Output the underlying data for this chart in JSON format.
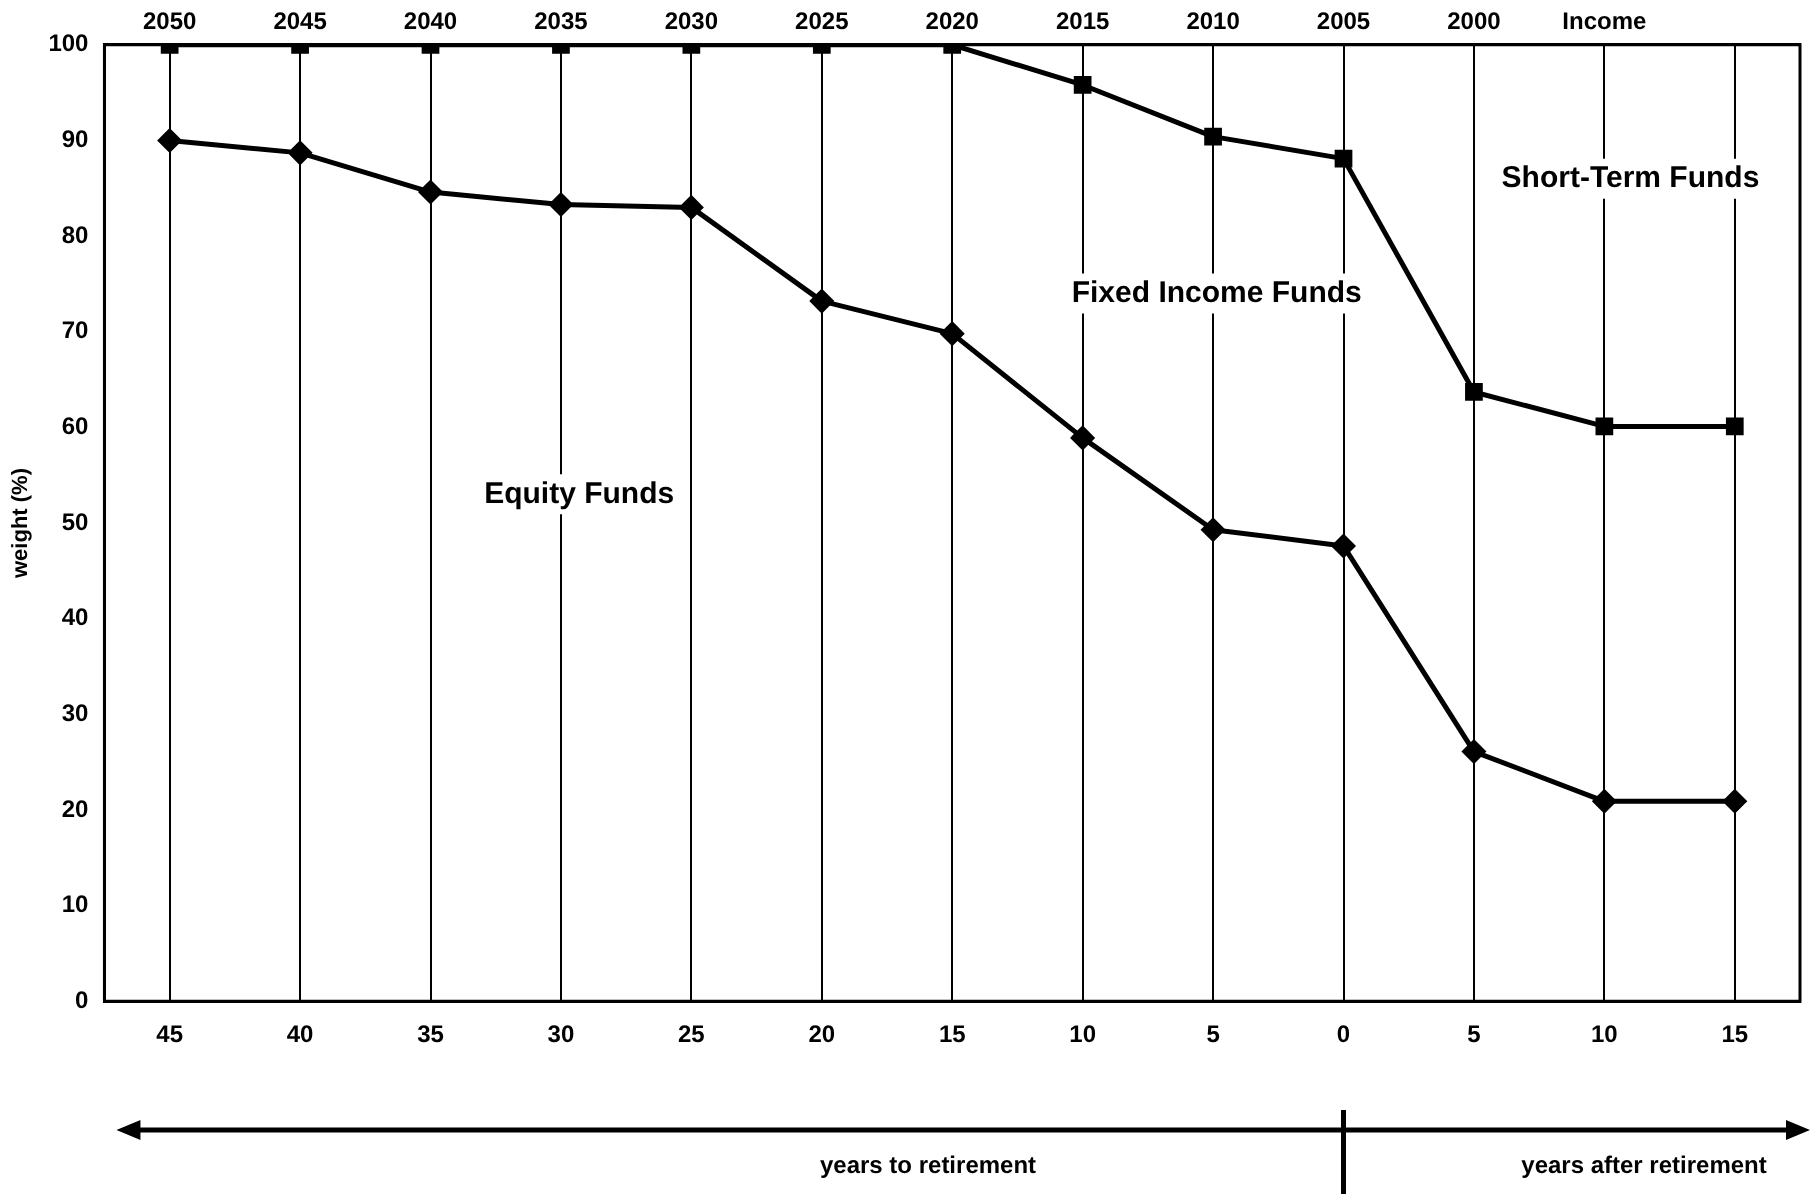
{
  "chart_data": {
    "type": "line",
    "ylabel": "weight (%)",
    "x": [
      -45,
      -40,
      -35,
      -30,
      -25,
      -20,
      -15,
      -10,
      -5,
      0,
      5,
      10,
      15
    ],
    "series": [
      {
        "color": "#000000",
        "marker": "square",
        "values": [
          100,
          100,
          100,
          100,
          100,
          100,
          100,
          95.8,
          90.4,
          88.1,
          63.7,
          60.1,
          60.1
        ]
      },
      {
        "color": "#000000",
        "marker": "diamond",
        "values": [
          90,
          88.7,
          84.6,
          83.3,
          83,
          73.2,
          69.8,
          58.9,
          49.3,
          47.6,
          26.1,
          20.9,
          20.9
        ]
      }
    ],
    "xlim": [
      -47.5,
      17.5
    ],
    "xticks": [
      {
        "value": -45,
        "label": "45"
      },
      {
        "value": -40,
        "label": "40"
      },
      {
        "value": -35,
        "label": "35"
      },
      {
        "value": -30,
        "label": "30"
      },
      {
        "value": -25,
        "label": "25"
      },
      {
        "value": -20,
        "label": "20"
      },
      {
        "value": -15,
        "label": "15"
      },
      {
        "value": -10,
        "label": "10"
      },
      {
        "value": -5,
        "label": "5"
      },
      0,
      5,
      10,
      15
    ],
    "x2lim": [
      2052.5,
      1987.5
    ],
    "x2ticks": [
      2050,
      2045,
      2040,
      2035,
      2030,
      2025,
      2020,
      2015,
      2010,
      2005,
      2000,
      {
        "value": 1995,
        "label": "Income"
      },
      {
        "value": 1990,
        "label": null
      }
    ],
    "ylim": [
      0,
      100
    ],
    "yticks": [
      0,
      10,
      20,
      30,
      40,
      50,
      60,
      70,
      80,
      90,
      100
    ],
    "grid": "x",
    "legend": false,
    "line_style": "solid",
    "annotations": [
      "Equity Funds",
      "Fixed Income Funds",
      "Short-Term Funds",
      "years to retirement",
      "years after retirement"
    ]
  }
}
